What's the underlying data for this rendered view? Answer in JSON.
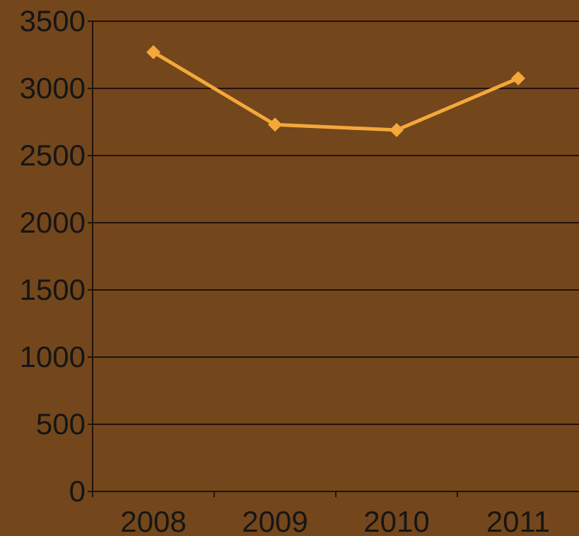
{
  "chart_data": {
    "type": "line",
    "categories": [
      "2008",
      "2009",
      "2010",
      "2011"
    ],
    "series": [
      {
        "values": [
          3270,
          2730,
          2690,
          3075
        ],
        "color": "#f5a83a",
        "marker": "diamond"
      }
    ],
    "title": "",
    "xlabel": "",
    "ylabel": "",
    "ylim": [
      0,
      3500
    ],
    "yticks": [
      0,
      500,
      1000,
      1500,
      2000,
      2500,
      3000,
      3500
    ],
    "ytick_labels": [
      "0",
      "500",
      "1000",
      "1500",
      "2000",
      "2500",
      "3000",
      "3500"
    ],
    "grid": true,
    "legend": "none",
    "colors": {
      "background": "#74461b",
      "gridline": "#1f130a",
      "text": "#161616",
      "series": "#f5a83a"
    }
  }
}
